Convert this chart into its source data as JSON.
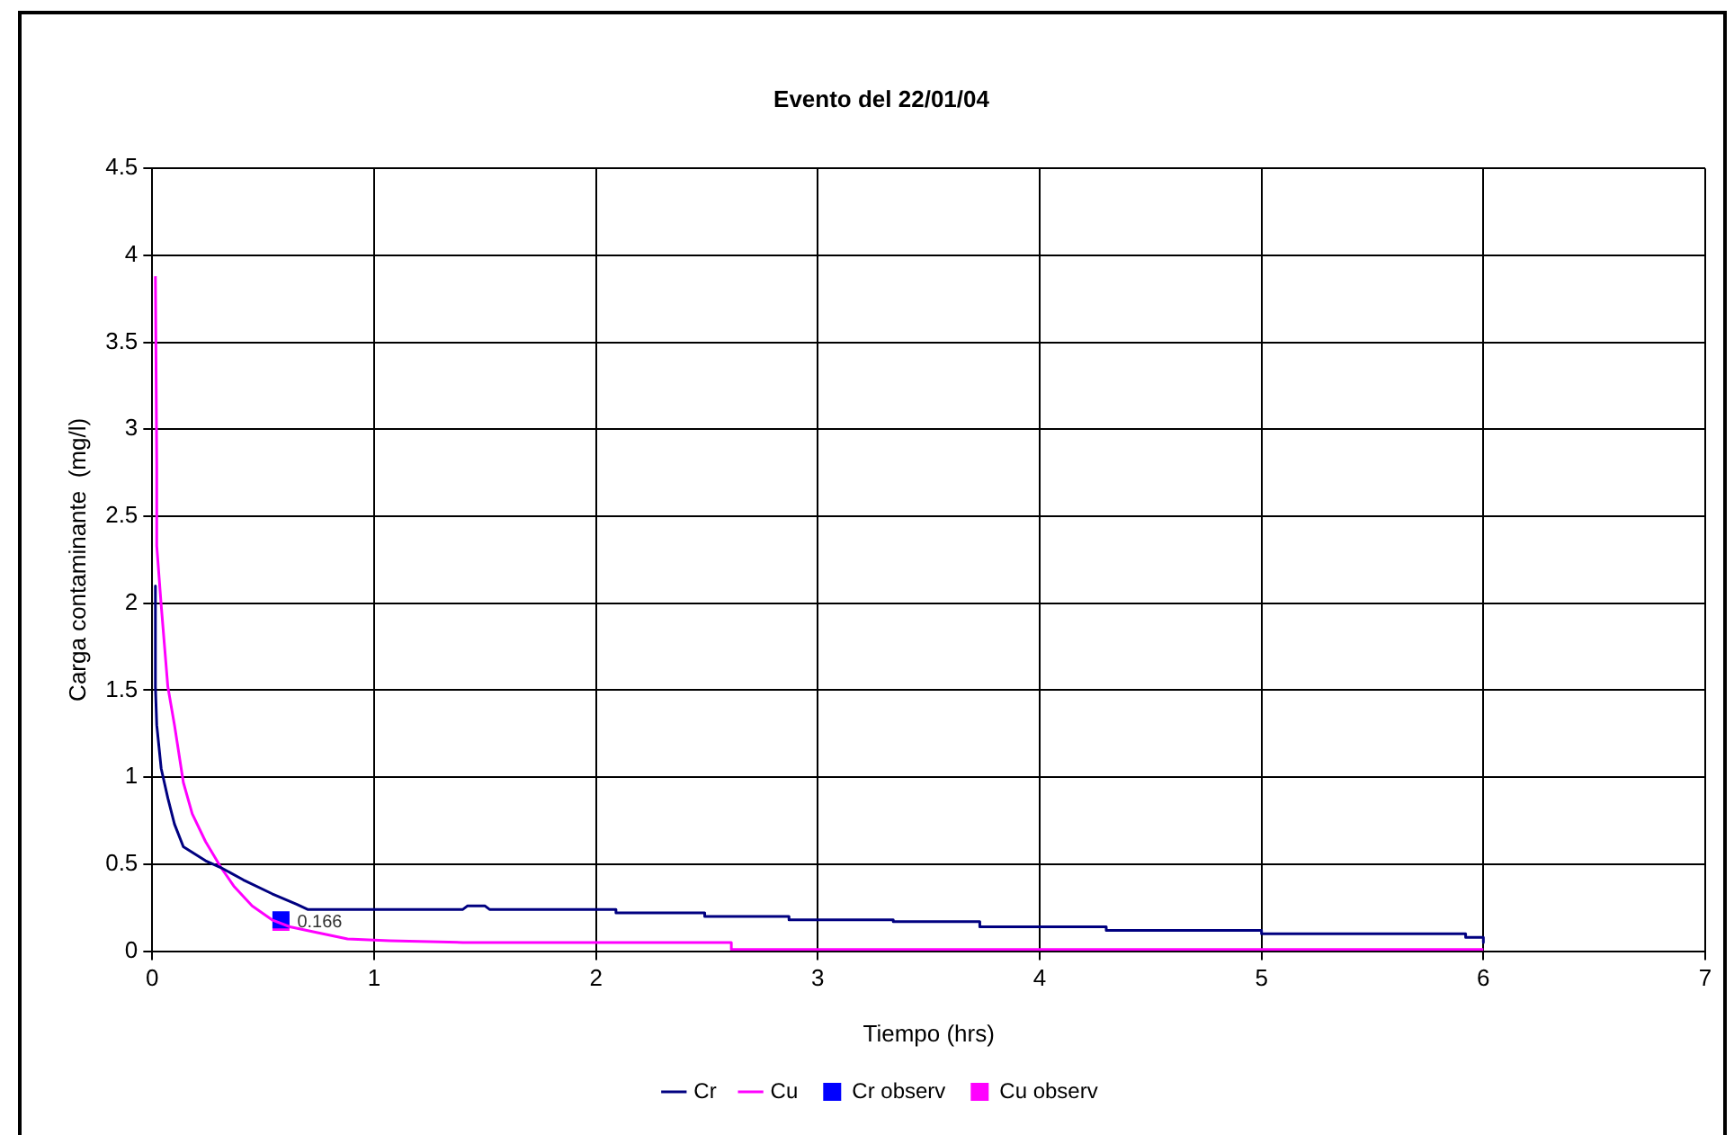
{
  "chart_data": {
    "type": "line",
    "title": "Evento del 22/01/04",
    "xlabel": "Tiempo (hrs)",
    "ylabel": "Carga contaminante  (mg/l)",
    "xlim": [
      0,
      7
    ],
    "xticks": [
      0,
      1,
      2,
      3,
      4,
      5,
      6,
      7
    ],
    "ylim": [
      0,
      4.5
    ],
    "yticks": [
      0,
      0.5,
      1,
      1.5,
      2,
      2.5,
      3,
      3.5,
      4,
      4.5
    ],
    "grid": true,
    "legend": "bottom",
    "marker": "none",
    "line_style": "solid",
    "series": [
      {
        "name": "Cr",
        "color": "#000080",
        "x": [
          0.014,
          0.014,
          0.02,
          0.04,
          0.07,
          0.1,
          0.14,
          0.24,
          0.31,
          0.41,
          0.54,
          0.65,
          0.7,
          1.4,
          1.42,
          1.5,
          1.52,
          2.09,
          2.09,
          2.49,
          2.49,
          2.87,
          2.87,
          3.34,
          3.34,
          3.73,
          3.73,
          4.3,
          4.3,
          5,
          5,
          5.92,
          5.92,
          6,
          6
        ],
        "values": [
          2.1,
          1.52,
          1.3,
          1.05,
          0.88,
          0.73,
          0.6,
          0.52,
          0.48,
          0.41,
          0.33,
          0.27,
          0.24,
          0.24,
          0.26,
          0.26,
          0.24,
          0.24,
          0.22,
          0.22,
          0.2,
          0.2,
          0.18,
          0.18,
          0.17,
          0.17,
          0.14,
          0.14,
          0.12,
          0.12,
          0.1,
          0.1,
          0.08,
          0.08,
          0.05
        ]
      },
      {
        "name": "Cu",
        "color": "#ff00ff",
        "x": [
          0.014,
          0.02,
          0.02,
          0.04,
          0.07,
          0.1,
          0.14,
          0.18,
          0.24,
          0.31,
          0.37,
          0.45,
          0.54,
          0.62,
          0.73,
          0.88,
          1.07,
          1.4,
          2.61,
          2.61,
          6
        ],
        "values": [
          3.88,
          2.79,
          2.33,
          1.99,
          1.52,
          1.3,
          0.97,
          0.79,
          0.63,
          0.48,
          0.37,
          0.26,
          0.18,
          0.14,
          0.11,
          0.07,
          0.06,
          0.05,
          0.05,
          0.01,
          0.01
        ]
      },
      {
        "name": "Cr observ",
        "type": "scatter",
        "marker": "square",
        "color": "#0000ff",
        "x": [
          0.58
        ],
        "values": [
          0.18
        ]
      },
      {
        "name": "Cu observ",
        "type": "scatter",
        "marker": "square",
        "color": "#ff00ff",
        "x": [
          0.58
        ],
        "values": [
          0.166
        ],
        "value_labels": [
          "0.166"
        ]
      }
    ]
  }
}
